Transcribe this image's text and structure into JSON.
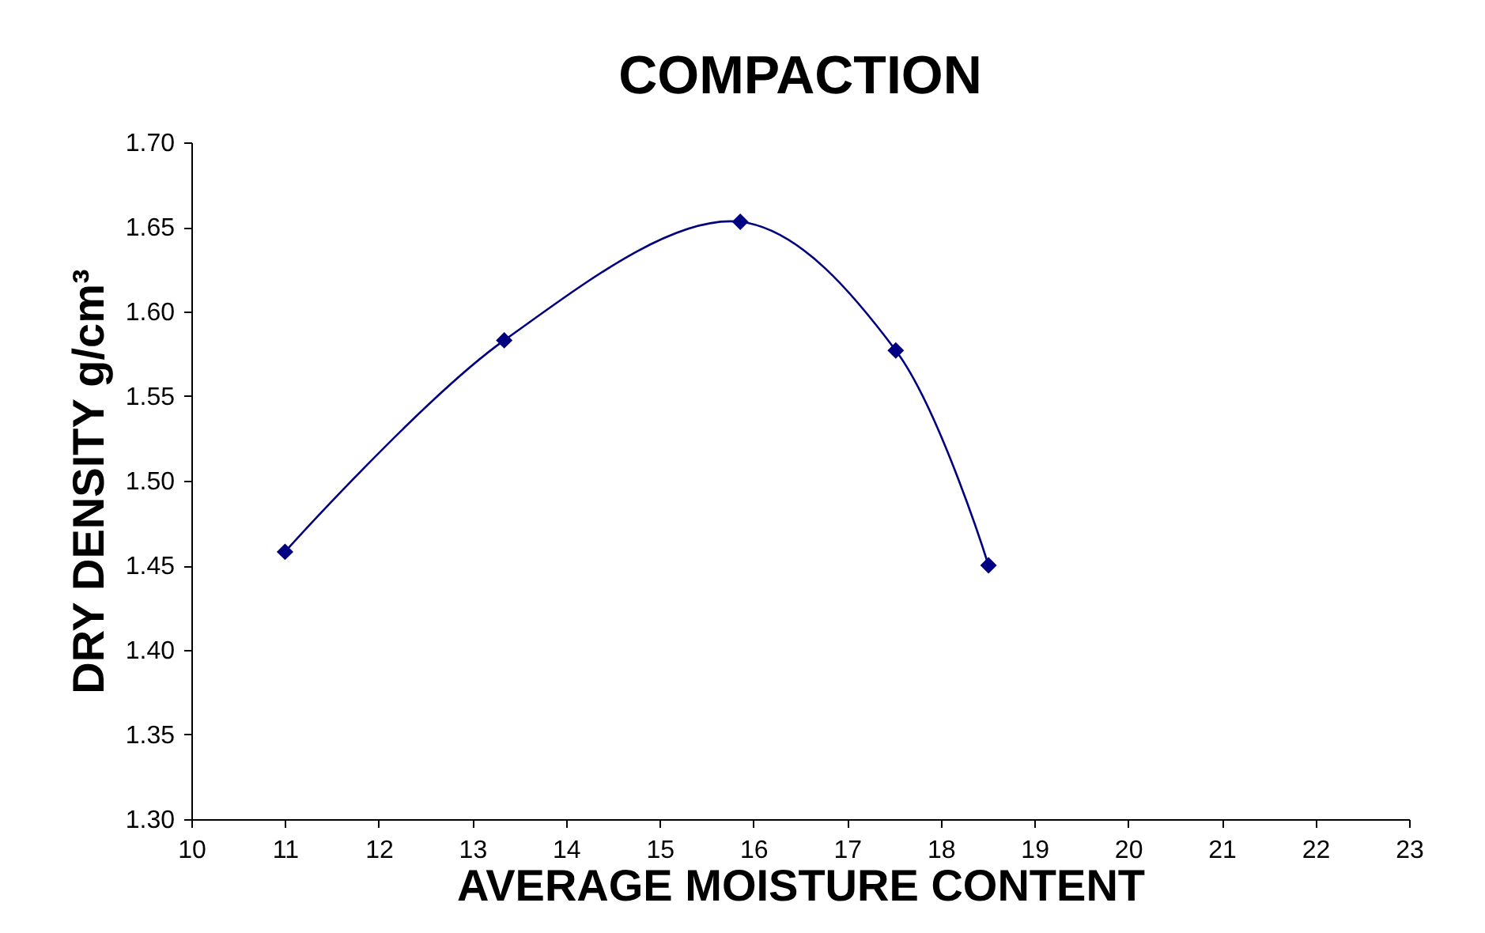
{
  "chart_data": {
    "type": "line",
    "title": "COMPACTION",
    "xlabel": "AVERAGE MOISTURE CONTENT",
    "ylabel": "DRY DENSITY g/cm³",
    "x": [
      11.0,
      13.34,
      15.86,
      17.52,
      18.51
    ],
    "series": [
      {
        "color": "#000080",
        "values": [
          1.458,
          1.583,
          1.653,
          1.577,
          1.45
        ]
      }
    ],
    "xlim": [
      10,
      23
    ],
    "xticks": [
      10,
      11,
      12,
      13,
      14,
      15,
      16,
      17,
      18,
      19,
      20,
      21,
      22,
      23
    ],
    "ylim": [
      1.3,
      1.7
    ],
    "yticks": [
      {
        "value": 1.3,
        "label": "1.30"
      },
      {
        "value": 1.35,
        "label": "1.35"
      },
      {
        "value": 1.4,
        "label": "1.40"
      },
      {
        "value": 1.45,
        "label": "1.45"
      },
      {
        "value": 1.5,
        "label": "1.50"
      },
      {
        "value": 1.55,
        "label": "1.55"
      },
      {
        "value": 1.6,
        "label": "1.60"
      },
      {
        "value": 1.65,
        "label": "1.65"
      },
      {
        "value": 1.7,
        "label": "1.70"
      }
    ],
    "marker": "diamond",
    "grid": false
  }
}
